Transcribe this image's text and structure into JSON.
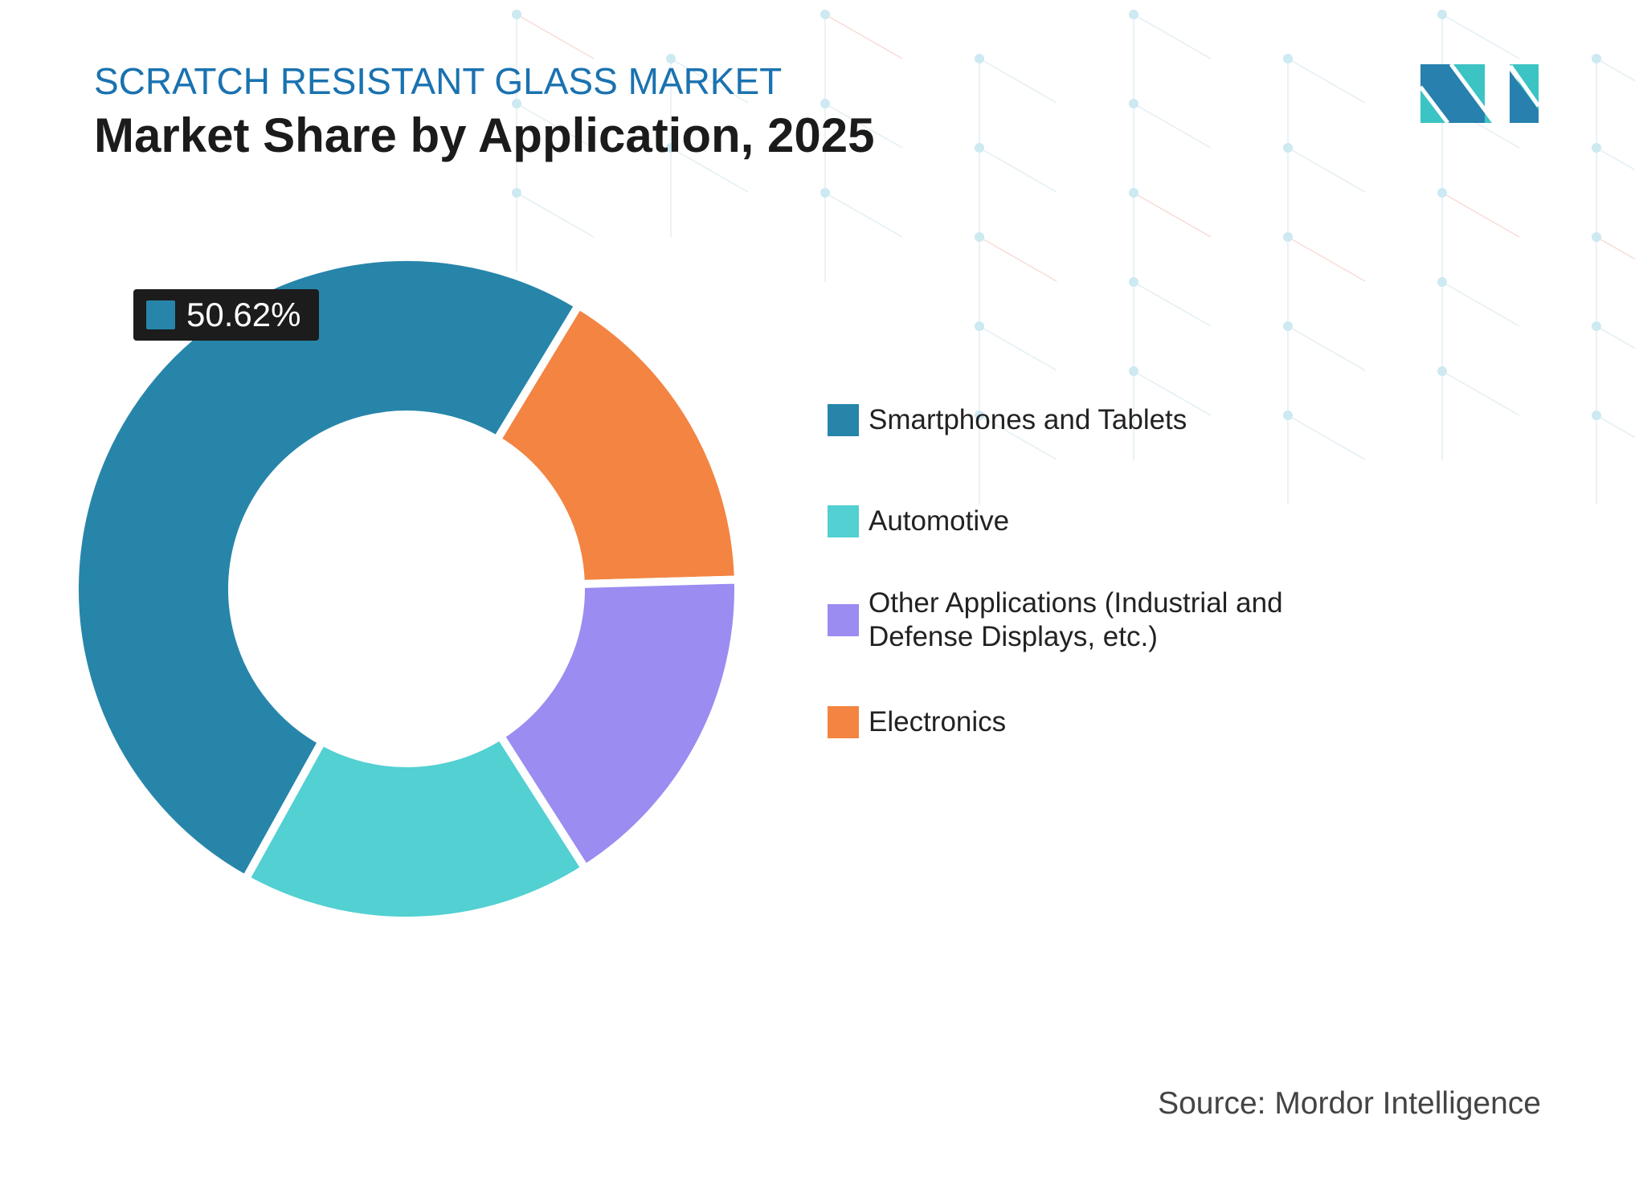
{
  "header": {
    "subtitle": "SCRATCH RESISTANT GLASS MARKET",
    "title": "Market Share by Application, 2025"
  },
  "chart_data": {
    "type": "pie",
    "variant": "donut",
    "title": "Market Share by Application, 2025",
    "categories": [
      "Smartphones and Tablets",
      "Automotive",
      "Other Applications (Industrial and Defense Displays, etc.)",
      "Electronics"
    ],
    "values": [
      50.62,
      17.1,
      16.4,
      15.88
    ],
    "colors": [
      "#2785aa",
      "#52d0d2",
      "#9a8cf0",
      "#f38442"
    ],
    "data_labels": [
      {
        "category": "Smartphones and Tablets",
        "text": "50.62%"
      }
    ],
    "legend_placement": "right"
  },
  "legend": {
    "items": [
      {
        "label": "Smartphones and Tablets",
        "color": "#2785aa"
      },
      {
        "label": "Automotive",
        "color": "#52d0d2"
      },
      {
        "label": "Other Applications (Industrial and Defense Displays, etc.)",
        "color": "#9a8cf0"
      },
      {
        "label": "Electronics",
        "color": "#f38442"
      }
    ]
  },
  "source": "Source: Mordor Intelligence",
  "logo": {
    "text": "MI",
    "colors": [
      "#2780ad",
      "#3cc3c4"
    ]
  }
}
